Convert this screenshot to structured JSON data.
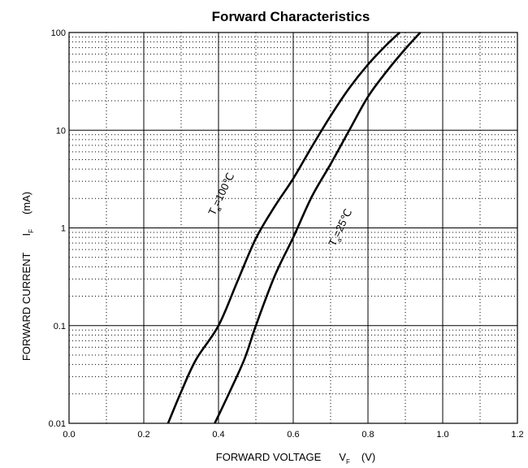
{
  "chart_data": {
    "type": "line",
    "title": "Forward Characteristics",
    "xlabel": {
      "main": "FORWARD VOLTAGE",
      "symbol": "V",
      "subscript": "F",
      "unit": "(V)"
    },
    "ylabel": {
      "main": "FORWARD CURRENT",
      "symbol": "I",
      "subscript": "F",
      "unit": "(mA)"
    },
    "x_scale": "linear",
    "y_scale": "log",
    "xlim": [
      0.0,
      1.2
    ],
    "ylim": [
      0.01,
      100
    ],
    "x_ticks": [
      "0.0",
      "0.2",
      "0.4",
      "0.6",
      "0.8",
      "1.0",
      "1.2"
    ],
    "y_ticks": [
      "0.01",
      "0.1",
      "1",
      "10",
      "100"
    ],
    "grid": true,
    "series": [
      {
        "name": "Ta=100°C",
        "label": {
          "prefix": "T",
          "subscript": "a",
          "text": "=100℃"
        },
        "x": [
          0.265,
          0.3,
          0.34,
          0.4,
          0.45,
          0.5,
          0.55,
          0.6,
          0.65,
          0.7,
          0.75,
          0.8,
          0.85,
          0.885
        ],
        "y": [
          0.01,
          0.021,
          0.045,
          0.1,
          0.28,
          0.78,
          1.65,
          3.2,
          6.8,
          14,
          27,
          47,
          75,
          100
        ]
      },
      {
        "name": "Ta=25°C",
        "label": {
          "prefix": "T",
          "subscript": "a",
          "text": "=25℃"
        },
        "x": [
          0.39,
          0.43,
          0.47,
          0.5,
          0.55,
          0.6,
          0.65,
          0.7,
          0.75,
          0.8,
          0.85,
          0.9,
          0.94
        ],
        "y": [
          0.01,
          0.021,
          0.046,
          0.1,
          0.32,
          0.8,
          2.1,
          4.5,
          10,
          22,
          40,
          68,
          100
        ]
      }
    ]
  }
}
